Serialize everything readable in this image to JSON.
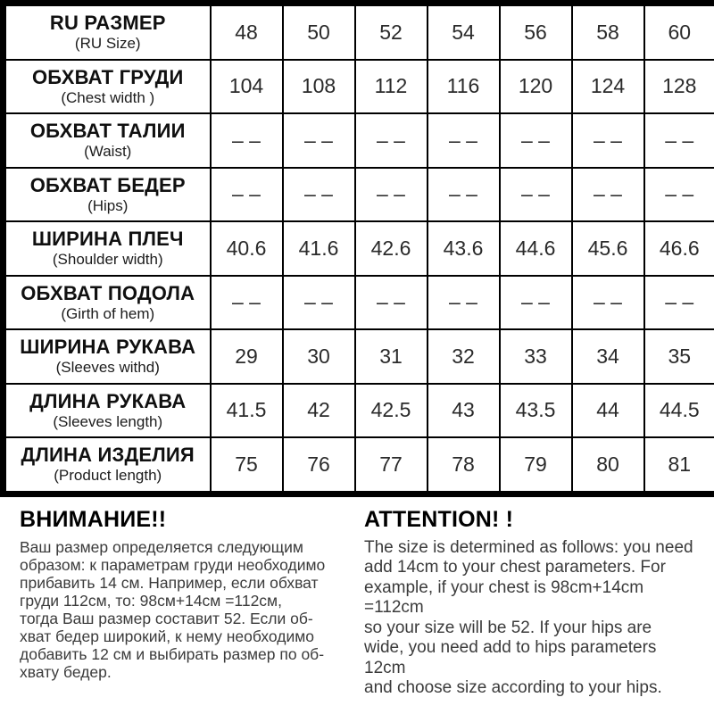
{
  "chart_data": {
    "type": "table",
    "rows": [
      {
        "label_ru": "RU РАЗМЕР",
        "label_en": "(RU Size)",
        "values": [
          "48",
          "50",
          "52",
          "54",
          "56",
          "58",
          "60"
        ]
      },
      {
        "label_ru": "ОБХВАТ ГРУДИ",
        "label_en": "(Chest width )",
        "values": [
          "104",
          "108",
          "112",
          "116",
          "120",
          "124",
          "128"
        ]
      },
      {
        "label_ru": "ОБХВАТ ТАЛИИ",
        "label_en": "(Waist)",
        "values": [
          "– –",
          "– –",
          "– –",
          "– –",
          "– –",
          "– –",
          "– –"
        ]
      },
      {
        "label_ru": "ОБХВАТ БЕДЕР",
        "label_en": "(Hips)",
        "values": [
          "– –",
          "– –",
          "– –",
          "– –",
          "– –",
          "– –",
          "– –"
        ]
      },
      {
        "label_ru": "ШИРИНА ПЛЕЧ",
        "label_en": "(Shoulder width)",
        "values": [
          "40.6",
          "41.6",
          "42.6",
          "43.6",
          "44.6",
          "45.6",
          "46.6"
        ]
      },
      {
        "label_ru": "ОБХВАТ ПОДОЛА",
        "label_en": "(Girth of hem)",
        "values": [
          "– –",
          "– –",
          "– –",
          "– –",
          "– –",
          "– –",
          "– –"
        ]
      },
      {
        "label_ru": "ШИРИНА РУКАВА",
        "label_en": "(Sleeves withd)",
        "values": [
          "29",
          "30",
          "31",
          "32",
          "33",
          "34",
          "35"
        ]
      },
      {
        "label_ru": "ДЛИНА РУКАВА",
        "label_en": "(Sleeves length)",
        "values": [
          "41.5",
          "42",
          "42.5",
          "43",
          "43.5",
          "44",
          "44.5"
        ]
      },
      {
        "label_ru": "ДЛИНА ИЗДЕЛИЯ",
        "label_en": "(Product length)",
        "values": [
          "75",
          "76",
          "77",
          "78",
          "79",
          "80",
          "81"
        ]
      }
    ]
  },
  "notes": {
    "ru": {
      "heading": "ВНИМАНИЕ!!",
      "body": "Ваш размер определяется следующим\nобразом: к параметрам груди необходимо\nприбавить 14 см. Например, если обхват\nгруди 112см, то: 98см+14см =112см,\nтогда Ваш размер составит 52. Если об-\nхват бедер широкий, к нему необходимо\nдобавить 12 см и выбирать размер по об-\nхвату бедер."
    },
    "en": {
      "heading": "ATTENTION! !",
      "body": "The size is determined as follows: you need\nadd 14cm to your chest parameters. For\nexample, if your chest is 98cm+14cm =112cm\nso your size will be 52. If your hips are\nwide, you need add to hips parameters 12cm\nand choose size according to your hips."
    }
  },
  "colors": {
    "accent_red": "#e21d1a",
    "table_border": "#000000",
    "body_text": "#3b3b3b"
  }
}
